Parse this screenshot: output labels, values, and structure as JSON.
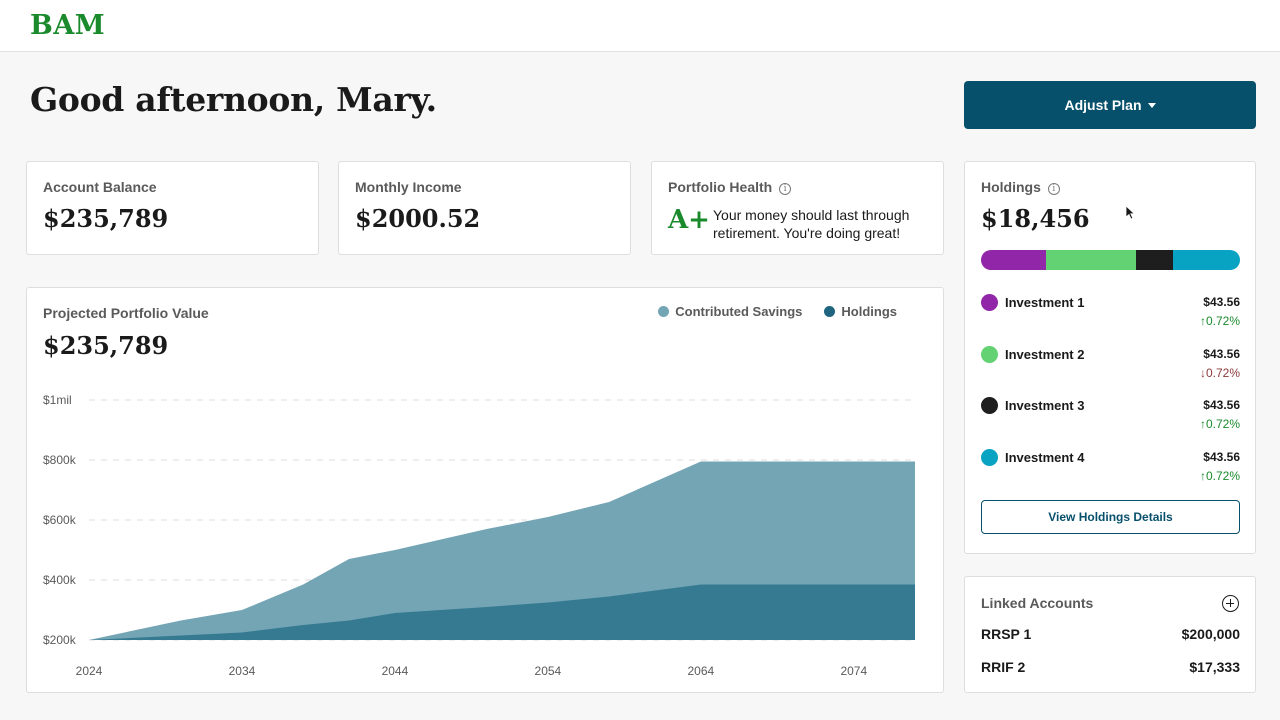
{
  "brand": {
    "logo": "BAM",
    "accent": "#1a8a2c",
    "primary": "#07506b"
  },
  "greeting": "Good afternoon, Mary.",
  "adjust_plan": {
    "label": "Adjust Plan"
  },
  "account_balance": {
    "label": "Account Balance",
    "value": "$235,789"
  },
  "monthly_income": {
    "label": "Monthly Income",
    "value": "$2000.52"
  },
  "portfolio_health": {
    "label": "Portfolio Health",
    "info_icon": "ⓘ",
    "grade": "A+",
    "message": "Your money should last through retirement. You're doing great!"
  },
  "projected": {
    "label": "Projected Portfolio Value",
    "value": "$235,789",
    "legend": [
      {
        "name": "Contributed Savings",
        "color": "#74a5b5"
      },
      {
        "name": "Holdings",
        "color": "#1f6580"
      }
    ]
  },
  "chart_data": {
    "type": "area",
    "title": "Projected Portfolio Value",
    "x": [
      2024,
      2030,
      2034,
      2038,
      2041,
      2044,
      2050,
      2054,
      2058,
      2064,
      2068,
      2074,
      2078
    ],
    "xticks": [
      "2024",
      "2034",
      "2044",
      "2054",
      "2064",
      "2074"
    ],
    "xtick_values": [
      2024,
      2034,
      2044,
      2054,
      2064,
      2074
    ],
    "yticks": [
      "$200k",
      "$400k",
      "$600k",
      "$800k",
      "$1mil"
    ],
    "ytick_values": [
      200,
      400,
      600,
      800,
      1000
    ],
    "ylim": [
      200,
      1000
    ],
    "xlim": [
      2024,
      2078
    ],
    "grid": true,
    "legend_position": "top-right",
    "series": [
      {
        "name": "Contributed Savings",
        "color": "#74a5b5",
        "values": [
          200,
          265,
          300,
          385,
          470,
          500,
          570,
          610,
          660,
          795,
          795,
          795,
          795
        ]
      },
      {
        "name": "Holdings",
        "color": "#357a91",
        "values": [
          200,
          215,
          225,
          250,
          265,
          290,
          310,
          325,
          345,
          385,
          385,
          385,
          385
        ]
      }
    ]
  },
  "holdings": {
    "label": "Holdings",
    "value": "$18,456",
    "allocation": [
      {
        "name": "Investment 1",
        "fraction": 0.25,
        "color": "#9126a8"
      },
      {
        "name": "Investment 2",
        "fraction": 0.35,
        "color": "#62d273"
      },
      {
        "name": "Investment 3",
        "fraction": 0.14,
        "color": "#1e1e1e"
      },
      {
        "name": "Investment 4",
        "fraction": 0.26,
        "color": "#08a2c2"
      }
    ],
    "items": [
      {
        "name": "Investment 1",
        "value": "$43.56",
        "change": "0.72%",
        "direction": "up",
        "arrow": "↑",
        "color": "#9126a8"
      },
      {
        "name": "Investment 2",
        "value": "$43.56",
        "change": "0.72%",
        "direction": "down",
        "arrow": "↓",
        "color": "#62d273"
      },
      {
        "name": "Investment 3",
        "value": "$43.56",
        "change": "0.72%",
        "direction": "up",
        "arrow": "↑",
        "color": "#1e1e1e"
      },
      {
        "name": "Investment 4",
        "value": "$43.56",
        "change": "0.72%",
        "direction": "up",
        "arrow": "↑",
        "color": "#08a2c2"
      }
    ],
    "button": "View Holdings Details"
  },
  "linked_accounts": {
    "label": "Linked Accounts",
    "accounts": [
      {
        "name": "RRSP 1",
        "value": "$200,000"
      },
      {
        "name": "RRIF 2",
        "value": "$17,333"
      }
    ]
  }
}
